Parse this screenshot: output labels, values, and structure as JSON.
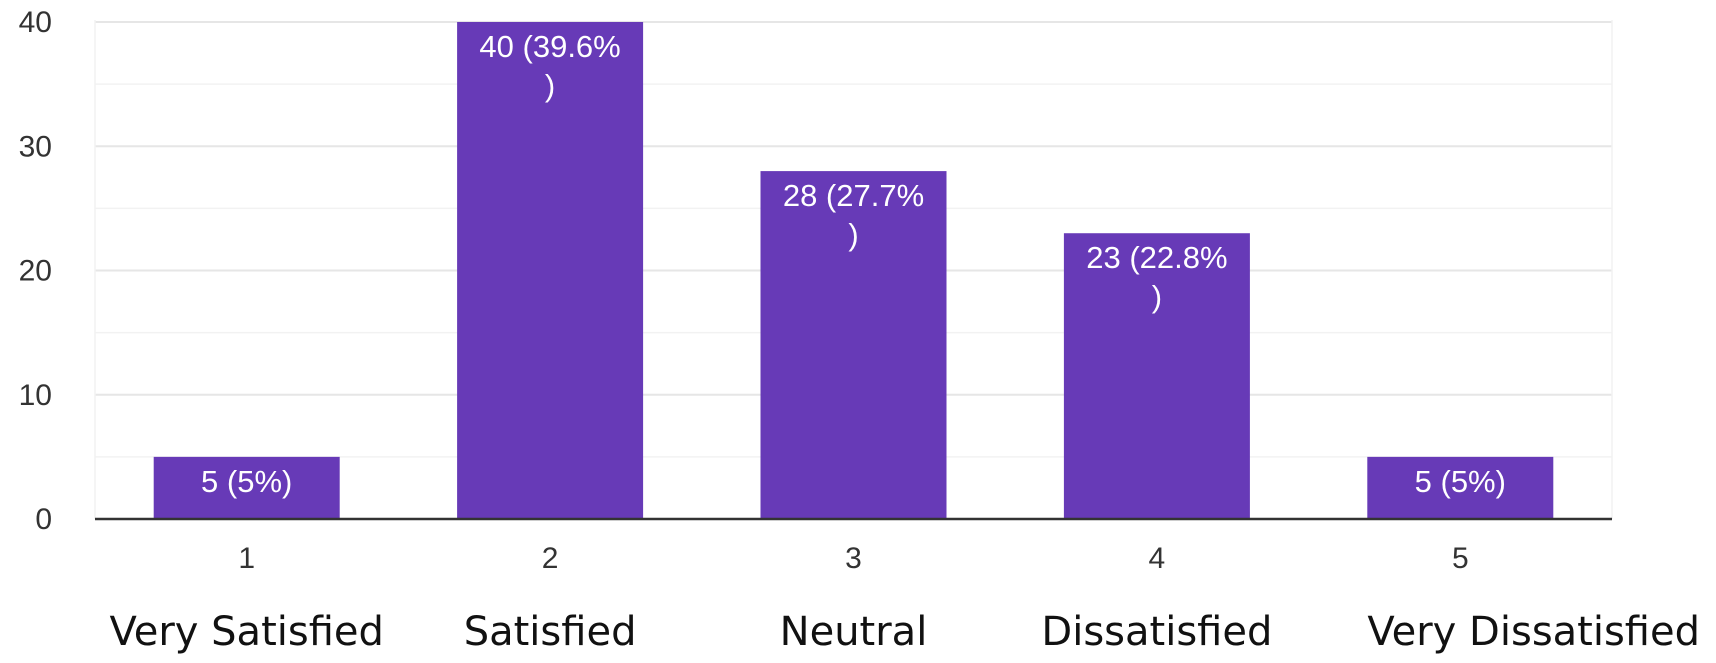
{
  "chart_data": {
    "type": "bar",
    "categories": [
      "1",
      "2",
      "3",
      "4",
      "5"
    ],
    "satisfaction_labels": [
      "Very Satisfied",
      "Satisfied",
      "Neutral",
      "Dissatisfied",
      "Very Dissatisfied"
    ],
    "values": [
      5,
      40,
      28,
      23,
      5
    ],
    "data_labels": [
      [
        "5 (5%)"
      ],
      [
        "40 (39.6%",
        ")"
      ],
      [
        "28 (27.7%",
        ")"
      ],
      [
        "23 (22.8%",
        ")"
      ],
      [
        "5 (5%)"
      ]
    ],
    "ylim": [
      0,
      40
    ],
    "y_ticks": [
      0,
      10,
      20,
      30,
      40
    ],
    "grid": true,
    "colors": {
      "bar": "#673ab7",
      "grid_major": "#e6e6e6",
      "grid_minor": "#f2f2f2",
      "axis": "#333333"
    }
  }
}
